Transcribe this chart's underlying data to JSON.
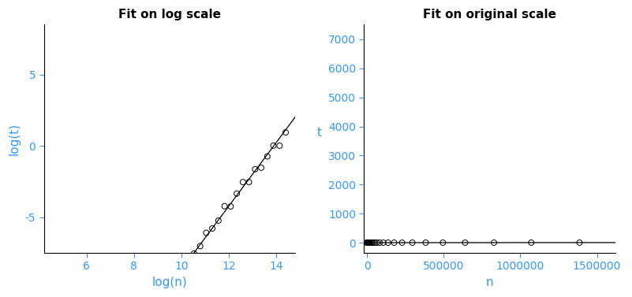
{
  "title_left": "Fit on log scale",
  "title_right": "Fit on original scale",
  "xlabel_left": "log(n)",
  "ylabel_left": "log(t)",
  "xlabel_right": "n",
  "ylabel_right": "t",
  "fit_a": 3.5e-14,
  "fit_b": 2.23,
  "xlim_left": [
    4.2,
    14.8
  ],
  "ylim_left": [
    -7.5,
    8.5
  ],
  "xlim_right": [
    -20000,
    1620000
  ],
  "ylim_right": [
    -350,
    7500
  ],
  "yticks_right": [
    0,
    1000,
    2000,
    3000,
    4000,
    5000,
    6000,
    7000
  ],
  "xticks_right": [
    0,
    500000,
    1000000,
    1500000
  ],
  "xtick_labels_right": [
    "0",
    "500000",
    "1000000",
    "1500000"
  ],
  "xticks_left": [
    6,
    8,
    10,
    12,
    14
  ],
  "yticks_left": [
    -5,
    0,
    5
  ],
  "background_color": "#ffffff",
  "line_color": "#000000",
  "point_color": "#000000",
  "axis_label_color": "#3399ff",
  "title_color": "#000000",
  "title_fontsize": 11,
  "label_fontsize": 11,
  "tick_fontsize": 10
}
